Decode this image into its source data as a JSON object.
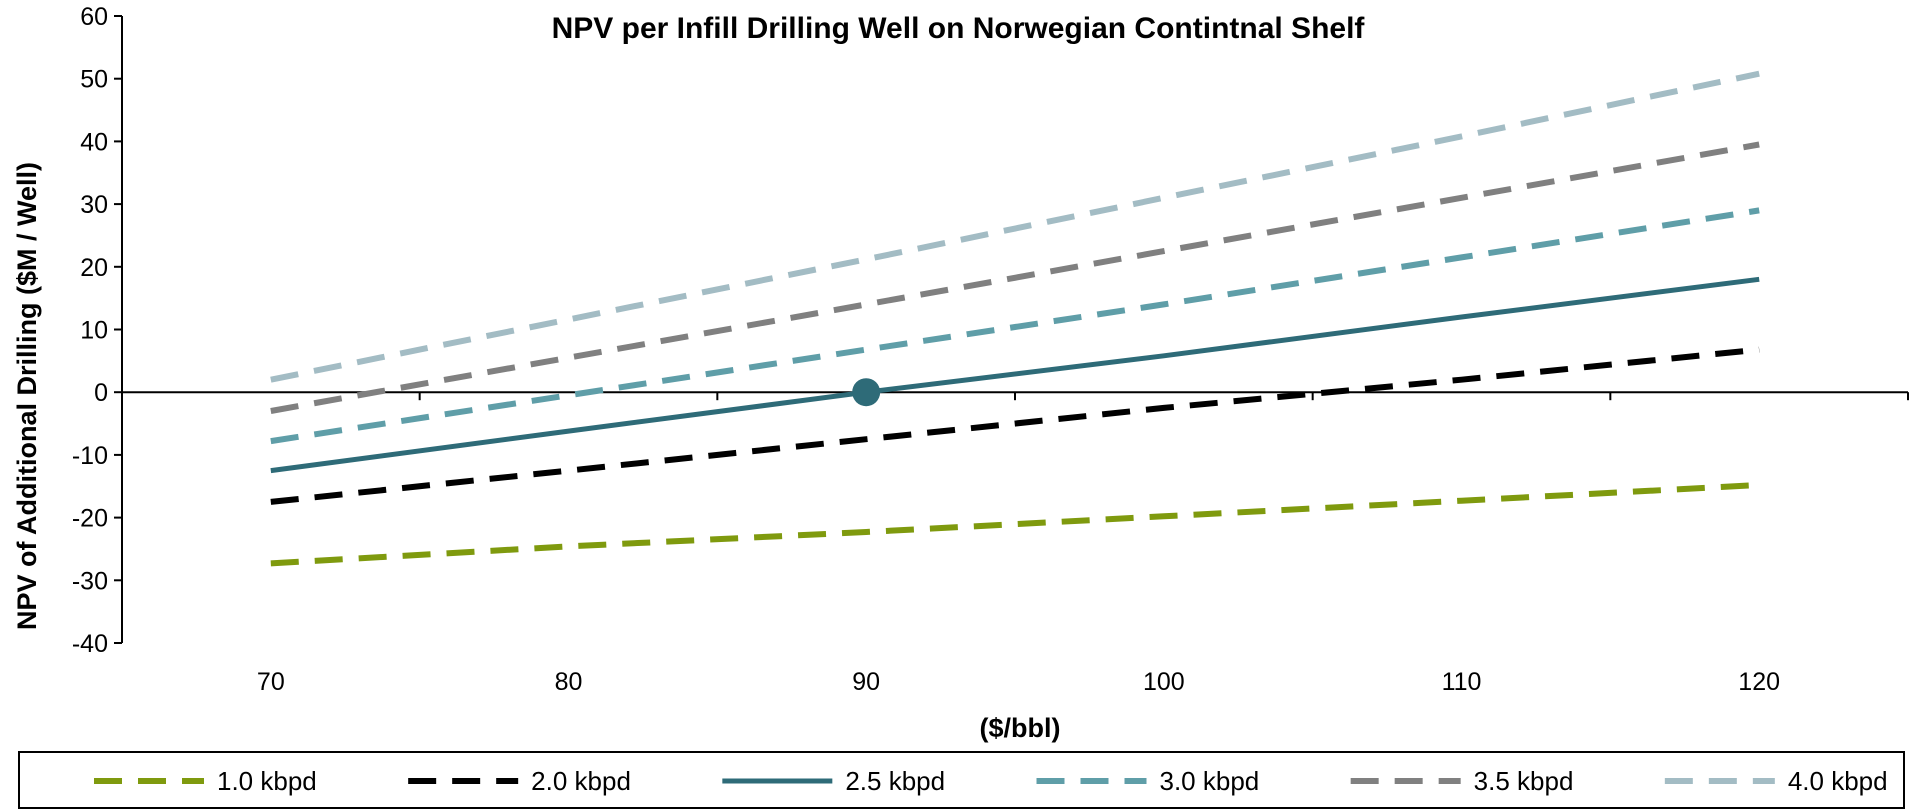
{
  "chart_data": {
    "type": "line",
    "title": "NPV per Infill Drilling Well on Norwegian Contintnal Shelf",
    "xlabel": "($/bbl)",
    "ylabel": "NPV of Additional Drilling ($M / Well)",
    "xlim": [
      65,
      125
    ],
    "ylim": [
      -40,
      60
    ],
    "x_ticks": [
      70,
      80,
      90,
      100,
      110,
      120
    ],
    "y_ticks": [
      -40,
      -30,
      -20,
      -10,
      0,
      10,
      20,
      30,
      40,
      50,
      60
    ],
    "legend_position": "bottom",
    "grid": false,
    "x": [
      70,
      80,
      90,
      100,
      110,
      120
    ],
    "series": [
      {
        "name": "1.0 kbpd",
        "values": [
          -27.3,
          -24.6,
          -22.3,
          -19.8,
          -17.3,
          -14.8
        ],
        "color": "#7f9a0e",
        "style": "dashed"
      },
      {
        "name": "2.0 kbpd",
        "values": [
          -17.5,
          -12.5,
          -7.5,
          -2.5,
          2.0,
          6.8
        ],
        "color": "#000000",
        "style": "dashed"
      },
      {
        "name": "2.5 kbpd",
        "values": [
          -12.5,
          -6.2,
          0.0,
          5.8,
          12.0,
          18.0
        ],
        "color": "#2e6b78",
        "style": "solid"
      },
      {
        "name": "3.0 kbpd",
        "values": [
          -7.8,
          -0.5,
          6.8,
          14.0,
          21.5,
          29.0
        ],
        "color": "#5f9ea8",
        "style": "dashed"
      },
      {
        "name": "3.5 kbpd",
        "values": [
          -3.0,
          5.5,
          14.0,
          22.5,
          31.0,
          39.5
        ],
        "color": "#808080",
        "style": "dashed"
      },
      {
        "name": "4.0 kbpd",
        "values": [
          2.0,
          11.6,
          21.2,
          31.0,
          40.8,
          50.8
        ],
        "color": "#a3bcc4",
        "style": "dashed"
      }
    ],
    "marker": {
      "x": 90,
      "y": 0,
      "color": "#2e6b78"
    }
  }
}
